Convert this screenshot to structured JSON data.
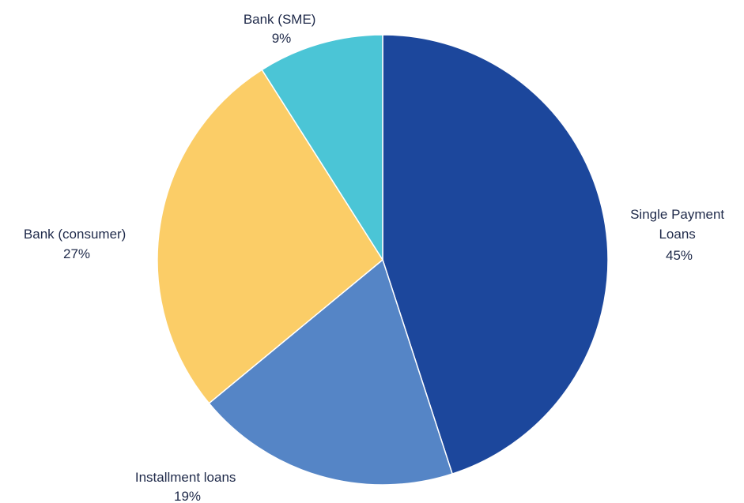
{
  "chart_data": {
    "type": "pie",
    "title": "",
    "start": "top",
    "direction": "clockwise",
    "slices": [
      {
        "name": "Single Payment Loans",
        "label_lines": [
          "Single Payment",
          "Loans"
        ],
        "value": 45,
        "value_label": "45%",
        "color": "#1c479c"
      },
      {
        "name": "Installment loans",
        "label_lines": [
          "Installment loans"
        ],
        "value": 19,
        "value_label": "19%",
        "color": "#5585c6"
      },
      {
        "name": "Bank (consumer)",
        "label_lines": [
          "Bank (consumer)"
        ],
        "value": 27,
        "value_label": "27%",
        "color": "#fbcd67"
      },
      {
        "name": "Bank (SME)",
        "label_lines": [
          "Bank (SME)"
        ],
        "value": 9,
        "value_label": "9%",
        "color": "#4bc5d6"
      }
    ]
  }
}
